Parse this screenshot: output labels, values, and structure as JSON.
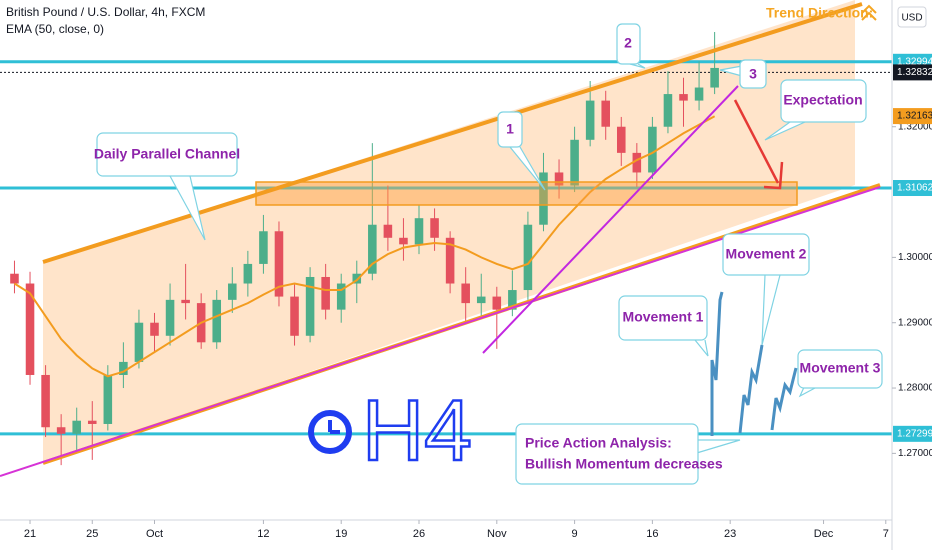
{
  "chart_data": {
    "type": "candlestick",
    "title": "British Pound / U.S. Dollar, 4h, FXCM",
    "currency": "USD",
    "x": [
      -1,
      0,
      1,
      2,
      3,
      4,
      5,
      6,
      7,
      8,
      9,
      10,
      11,
      12,
      13,
      14,
      15,
      16,
      17,
      18,
      19,
      20,
      21,
      22,
      23,
      24,
      25,
      26,
      27,
      28,
      29,
      30,
      31,
      32,
      33,
      34,
      35,
      36,
      37,
      38,
      39,
      40,
      41,
      42,
      43,
      44
    ],
    "open": [
      1.2975,
      1.296,
      1.282,
      1.274,
      1.273,
      1.275,
      1.2745,
      1.282,
      1.284,
      1.29,
      1.288,
      1.2935,
      1.293,
      1.287,
      1.2935,
      1.296,
      1.299,
      1.304,
      1.294,
      1.288,
      1.297,
      1.292,
      1.296,
      1.2975,
      1.305,
      1.303,
      1.302,
      1.306,
      1.303,
      1.296,
      1.293,
      1.294,
      1.292,
      1.295,
      1.305,
      1.313,
      1.311,
      1.318,
      1.324,
      1.32,
      1.316,
      1.313,
      1.32,
      1.325,
      1.324,
      1.326
    ],
    "high": [
      1.2995,
      1.2978,
      1.2835,
      1.276,
      1.277,
      1.278,
      1.2835,
      1.287,
      1.292,
      1.2915,
      1.296,
      1.299,
      1.2945,
      1.295,
      1.2985,
      1.301,
      1.3065,
      1.3055,
      1.296,
      1.2985,
      1.299,
      1.2975,
      1.2995,
      1.3175,
      1.311,
      1.306,
      1.308,
      1.3075,
      1.304,
      1.2985,
      1.2975,
      1.2955,
      1.298,
      1.307,
      1.316,
      1.315,
      1.32,
      1.327,
      1.3255,
      1.3215,
      1.3175,
      1.3215,
      1.3285,
      1.3275,
      1.33,
      1.3345
    ],
    "low": [
      1.2945,
      1.2805,
      1.2725,
      1.2682,
      1.2705,
      1.269,
      1.2735,
      1.28,
      1.283,
      1.2855,
      1.2865,
      1.2905,
      1.286,
      1.286,
      1.2915,
      1.294,
      1.2975,
      1.2925,
      1.2865,
      1.287,
      1.2905,
      1.29,
      1.293,
      1.2965,
      1.301,
      1.2995,
      1.3005,
      1.301,
      1.2945,
      1.29,
      1.2905,
      1.286,
      1.291,
      1.2935,
      1.304,
      1.309,
      1.31,
      1.317,
      1.318,
      1.314,
      1.3108,
      1.312,
      1.319,
      1.32,
      1.3225,
      1.325
    ],
    "close": [
      1.296,
      1.282,
      1.274,
      1.273,
      1.275,
      1.2745,
      1.282,
      1.284,
      1.29,
      1.288,
      1.2935,
      1.293,
      1.287,
      1.2935,
      1.296,
      1.299,
      1.304,
      1.294,
      1.288,
      1.297,
      1.292,
      1.296,
      1.2975,
      1.305,
      1.303,
      1.302,
      1.306,
      1.303,
      1.296,
      1.293,
      1.294,
      1.292,
      1.295,
      1.305,
      1.313,
      1.311,
      1.318,
      1.324,
      1.32,
      1.316,
      1.313,
      1.32,
      1.325,
      1.324,
      1.326,
      1.329
    ],
    "up_color": "#4cae8a",
    "down_color": "#e4505e",
    "series": [
      {
        "name": "EMA (50, close, 0)",
        "color": "#f39c1f",
        "values": [
          1.296,
          1.2945,
          1.291,
          1.2875,
          1.285,
          1.283,
          1.2818,
          1.2825,
          1.284,
          1.2855,
          1.287,
          1.2885,
          1.29,
          1.291,
          1.292,
          1.293,
          1.2943,
          1.2955,
          1.296,
          1.2955,
          1.295,
          1.295,
          1.2965,
          1.299,
          1.3005,
          1.3015,
          1.3019,
          1.3022,
          1.302,
          1.3012,
          1.3,
          1.299,
          1.2982,
          1.299,
          1.302,
          1.305,
          1.3075,
          1.31,
          1.312,
          1.3135,
          1.3149,
          1.316,
          1.3175,
          1.319,
          1.3203,
          1.3216
        ]
      }
    ],
    "xlim": [
      -1.93,
      55.4
    ],
    "xticks": [
      {
        "value": 0,
        "label": "21"
      },
      {
        "value": 4,
        "label": "25"
      },
      {
        "value": 8,
        "label": "Oct"
      },
      {
        "value": 15,
        "label": "12"
      },
      {
        "value": 20,
        "label": "19"
      },
      {
        "value": 25,
        "label": "26"
      },
      {
        "value": 30,
        "label": "Nov"
      },
      {
        "value": 35,
        "label": "9"
      },
      {
        "value": 40,
        "label": "16"
      },
      {
        "value": 45,
        "label": "23"
      },
      {
        "value": 51,
        "label": "Dec"
      },
      {
        "value": 55,
        "label": "7"
      }
    ],
    "ylim": [
      1.2598,
      1.3394
    ],
    "yticks": [
      {
        "value": 1.27,
        "label": "1.27000"
      },
      {
        "value": 1.28,
        "label": "1.28000"
      },
      {
        "value": 1.29,
        "label": "1.29000"
      },
      {
        "value": 1.3,
        "label": "1.30000"
      },
      {
        "value": 1.32,
        "label": "1.32000"
      }
    ],
    "grid": false,
    "levels": [
      {
        "value": 1.32994,
        "color": "#2fbfd6",
        "style": "solid"
      },
      {
        "value": 1.32832,
        "color": "#131722",
        "style": "dotted"
      },
      {
        "value": 1.32163,
        "color": "#f39c1f",
        "style": "none"
      },
      {
        "value": 1.31062,
        "color": "#2fbfd6",
        "style": "solid"
      },
      {
        "value": 1.27299,
        "color": "#2fbfd6",
        "style": "solid"
      }
    ],
    "annotations": {
      "trend": "Trend Direction:",
      "channel": "Daily Parallel Channel",
      "wave1": "1",
      "wave2": "2",
      "wave3": "3",
      "expectation": "Expectation",
      "movement1": "Movement 1",
      "movement2": "Movement 2",
      "movement3": "Movement 3",
      "analysis1": "Price Action Analysis:",
      "analysis2": "Bullish Momentum decreases",
      "timeframe": "H4"
    }
  }
}
